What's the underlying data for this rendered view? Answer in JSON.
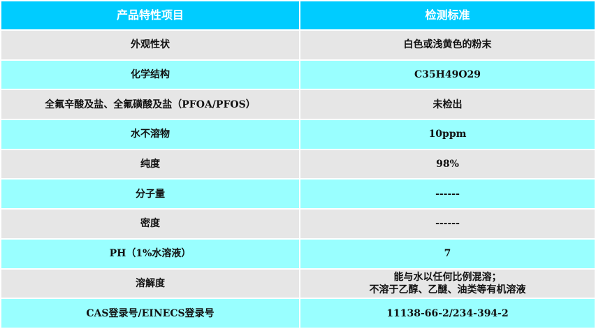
{
  "colors": {
    "header": "#00CCFF",
    "row_gray": "#E6E6E6",
    "row_cyan": "#99FFFF"
  },
  "header": [
    "产品特性项目",
    "检测标准"
  ],
  "rows": [
    [
      "外观性状",
      "白色或浅黄色的粉末"
    ],
    [
      "化学结构",
      "C35H49O29"
    ],
    [
      "全氟辛酸及盐、全氟磺酸及盐（PFOA/PFOS）",
      "未检出"
    ],
    [
      "水不溶物",
      "10ppm"
    ],
    [
      "纯度",
      "98%"
    ],
    [
      "分子量",
      "------"
    ],
    [
      "密度",
      "------"
    ],
    [
      "PH（1%水溶液）",
      "7"
    ],
    [
      "溶解度",
      "能与水以任何比例混溶；\n不溶于乙醇、乙醚、油类等有机溶液"
    ],
    [
      "CAS登录号/EINECS登录号",
      "11138-66-2/234-394-2"
    ]
  ]
}
